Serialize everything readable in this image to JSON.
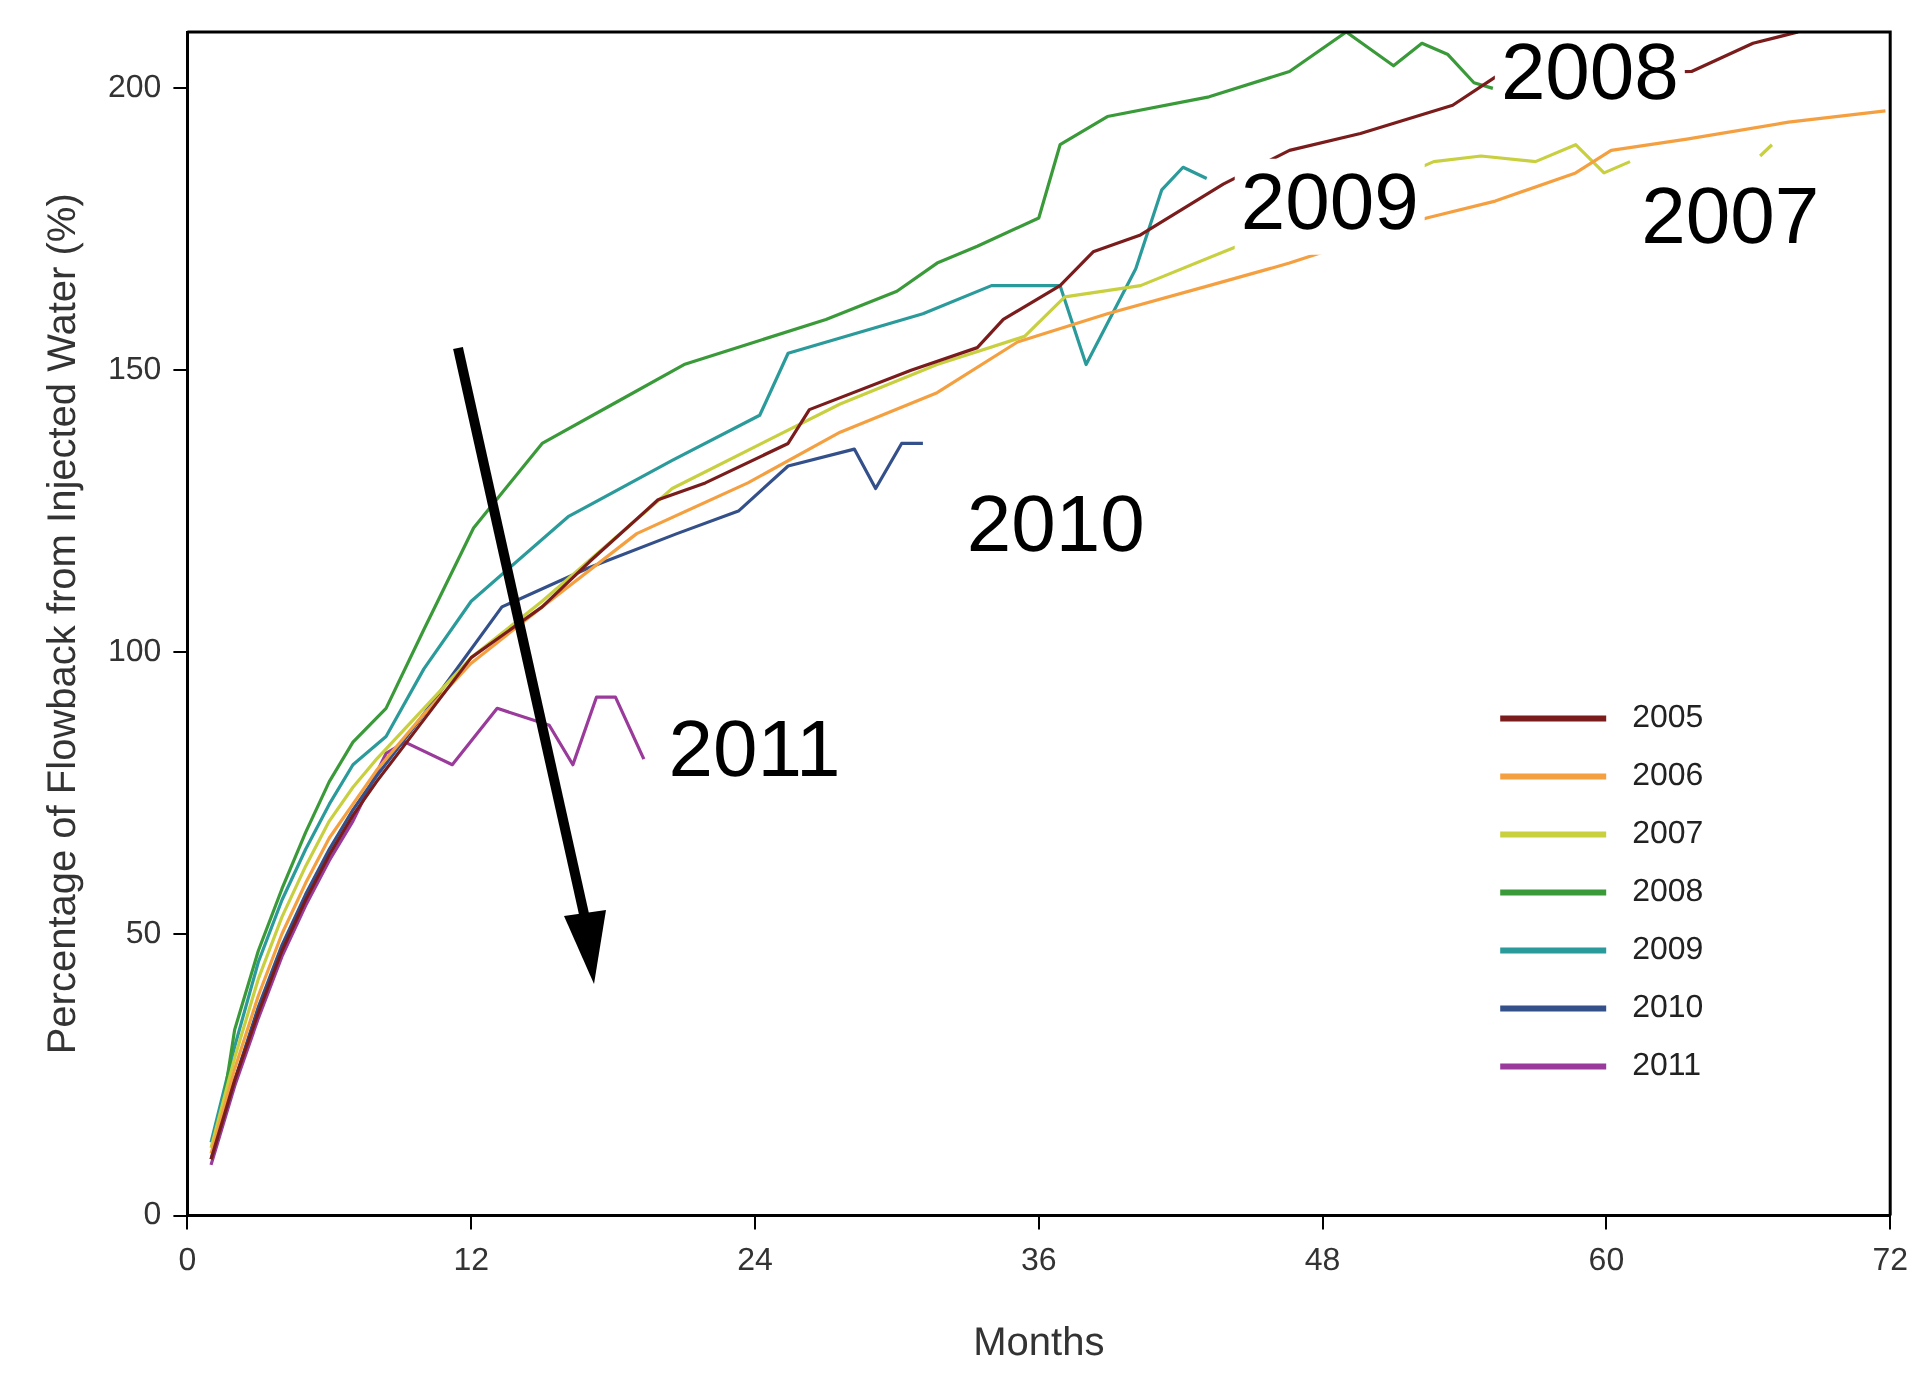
{
  "chart_data": {
    "type": "line",
    "xlabel": "Months",
    "ylabel": "Percentage of Flowback from Injected Water (%)",
    "xlim": [
      0,
      72
    ],
    "xticks": [
      0,
      12,
      24,
      36,
      48,
      60,
      72
    ],
    "ylim": [
      0,
      210
    ],
    "yticks": [
      0,
      50,
      100,
      150,
      200
    ],
    "grid": false,
    "legend": "bottom right",
    "marker": "none",
    "line_style": "solid",
    "series": [
      {
        "name": "2005",
        "color": "#7b1c1c",
        "x": [
          1,
          2,
          3,
          4,
          5,
          6,
          7,
          8,
          10,
          12,
          15,
          17,
          19.9,
          21.9,
          25.4,
          26.3,
          30.6,
          33.4,
          34.5,
          36.9,
          38.3,
          40.3,
          43.8,
          46.6,
          49.6,
          53.5,
          55.3,
          63.6,
          66.2,
          68.1
        ],
        "values": [
          10,
          24,
          36,
          47,
          56,
          64,
          71,
          77,
          88,
          99,
          108,
          116,
          127,
          130,
          137,
          143,
          150,
          154,
          159,
          165,
          171,
          174,
          183,
          189,
          192,
          197,
          202,
          203,
          208,
          210
        ]
      },
      {
        "name": "2006",
        "color": "#f5a040",
        "x": [
          1,
          2,
          3,
          4,
          5,
          6,
          7,
          8,
          10,
          12,
          15,
          19,
          23.7,
          27.6,
          31.7,
          35.1,
          38.9,
          43.2,
          46.6,
          52.4,
          55.3,
          58.7,
          60.2,
          63.4,
          67.7,
          71.8
        ],
        "values": [
          11,
          26,
          39,
          50,
          59,
          67,
          73,
          79,
          89,
          98,
          108,
          121,
          130,
          139,
          146,
          155,
          160,
          165,
          169,
          177,
          180,
          185,
          189,
          191,
          194,
          196
        ]
      },
      {
        "name": "2007",
        "color": "#c8d040",
        "x": [
          1,
          2,
          3,
          4,
          5,
          6,
          7,
          8,
          10,
          12,
          15,
          20.5,
          27.6,
          31.7,
          35.4,
          37.1,
          40.3,
          44.4,
          52.7,
          54.7,
          57,
          58.7,
          59.9,
          61,
          63,
          66.5,
          67
        ],
        "values": [
          12,
          28,
          42,
          53,
          62,
          70,
          76,
          81,
          90,
          99,
          109,
          129,
          144,
          151,
          156,
          163,
          165,
          172,
          187,
          188,
          187,
          190,
          185,
          187,
          null,
          188,
          190
        ]
      },
      {
        "name": "2008",
        "color": "#3a9a3a",
        "x": [
          1.3,
          2,
          3,
          4,
          5,
          6,
          7,
          8.4,
          10,
          12.1,
          15,
          18,
          21,
          24,
          27,
          30,
          31.7,
          33.4,
          36,
          36.9,
          38.9,
          43.2,
          46.6,
          49,
          51,
          52.2,
          53.3,
          54.4,
          55.2
        ],
        "values": [
          14,
          33,
          47,
          58,
          68,
          77,
          84,
          90,
          104,
          122,
          137,
          144,
          151,
          155,
          159,
          164,
          169,
          172,
          177,
          190,
          195,
          198.5,
          203,
          210,
          204,
          208,
          206,
          201,
          200
        ]
      },
      {
        "name": "2009",
        "color": "#2a9a9a",
        "x": [
          1,
          2,
          3,
          4,
          5,
          6,
          7,
          8.4,
          10,
          12,
          16.1,
          20.5,
          24.2,
          25.4,
          31.1,
          34,
          36.9,
          38,
          40.1,
          41.2,
          42.1,
          43.1
        ],
        "values": [
          13,
          30,
          45,
          56,
          65,
          73,
          80,
          85,
          97,
          109,
          124,
          134,
          142,
          153,
          160,
          165,
          165,
          151,
          168,
          182,
          186,
          184
        ]
      },
      {
        "name": "2010",
        "color": "#34508a",
        "x": [
          1,
          2,
          3,
          4,
          5,
          6,
          7,
          8,
          10,
          13.3,
          17,
          20.7,
          23.3,
          25.4,
          28.2,
          29.1,
          30.2,
          31.1
        ],
        "values": [
          10,
          24,
          37,
          48,
          57,
          65,
          72,
          78,
          89,
          108,
          115,
          121,
          125,
          133,
          136,
          129,
          137,
          137
        ]
      },
      {
        "name": "2011",
        "color": "#9a3a9a",
        "x": [
          1,
          2,
          3,
          4,
          5,
          6,
          7,
          8.4,
          9.2,
          11.2,
          13.1,
          15.3,
          16.3,
          17.3,
          18.1,
          19.3
        ],
        "values": [
          9,
          23,
          35,
          46,
          55,
          63,
          70,
          82,
          84,
          80,
          90,
          87,
          80,
          92,
          92,
          81
        ]
      }
    ],
    "annotations": [
      {
        "text": "2008",
        "x": 59.3,
        "y": 202
      },
      {
        "text": "2009",
        "x": 48.3,
        "y": 179
      },
      "2007",
      "2010",
      "2011"
    ]
  }
}
